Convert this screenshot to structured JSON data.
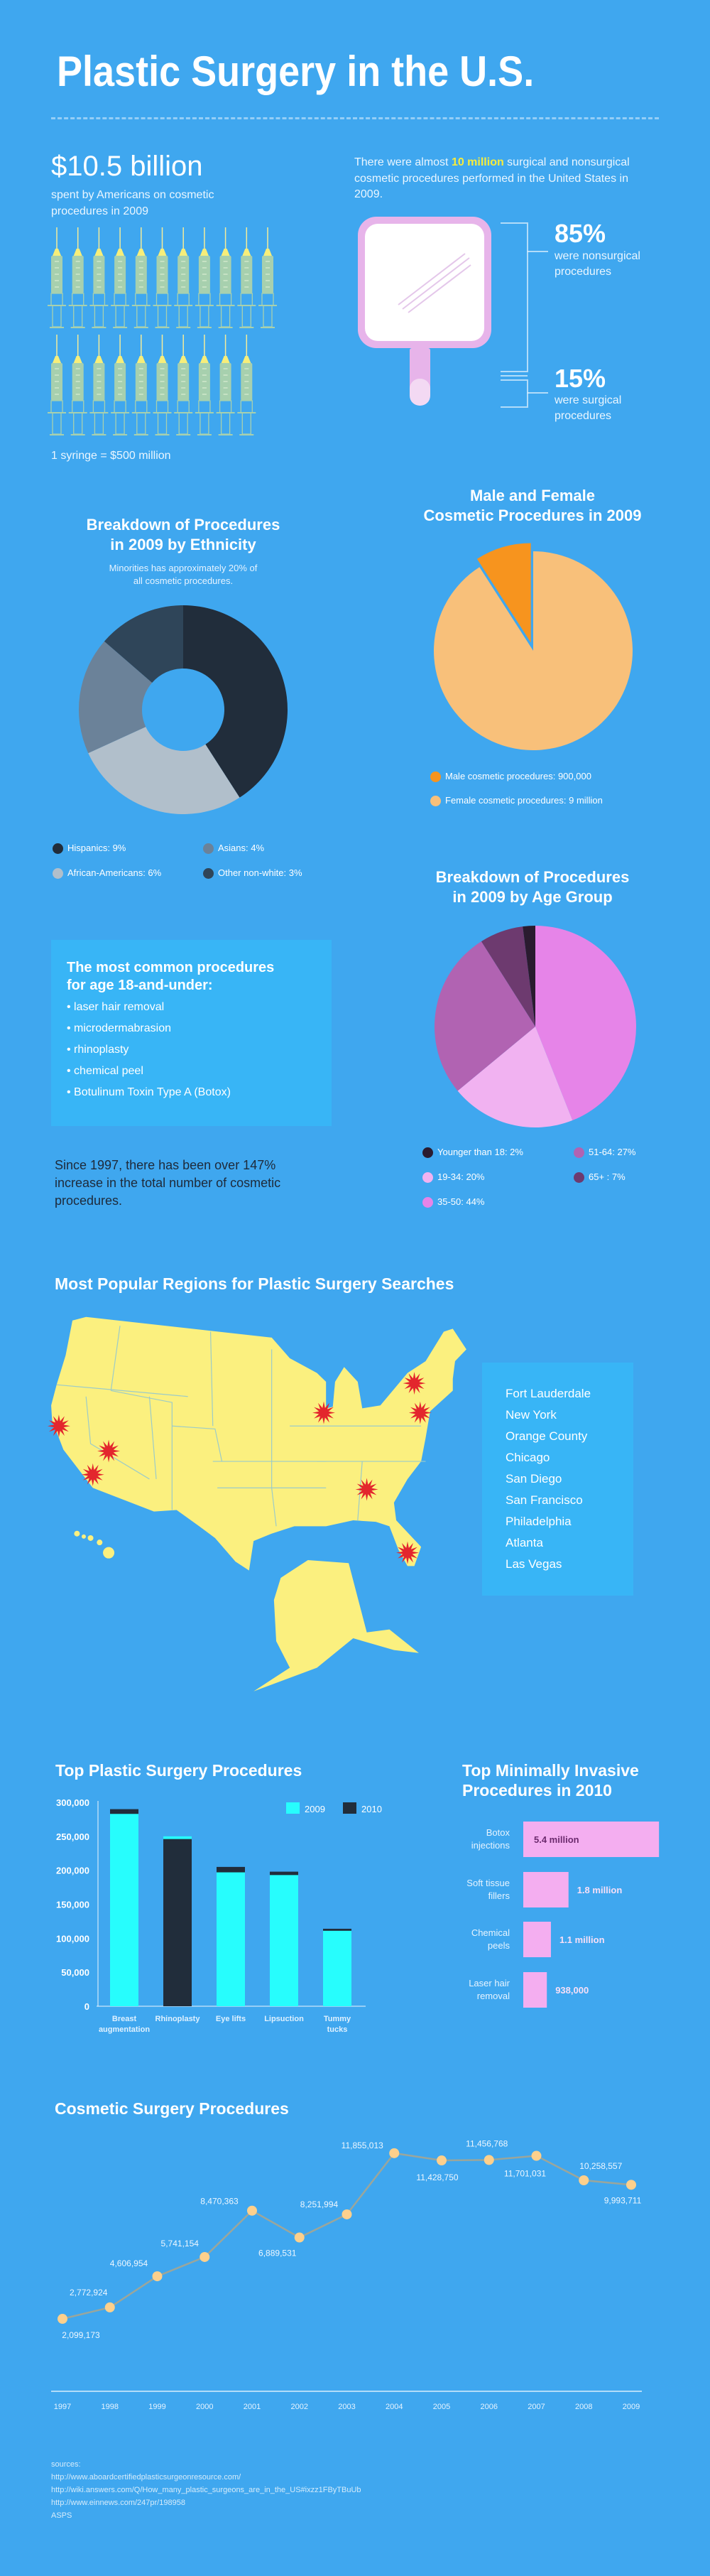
{
  "header": {
    "title": "Plastic Surgery in the U.S."
  },
  "spending": {
    "amount": "$10.5 billion",
    "desc_line1": "spent by Americans on cosmetic",
    "desc_line2": "procedures in 2009",
    "syringe_count": 21,
    "syringe_note": "1 syringe = $500 million"
  },
  "procedures_total": {
    "text_before": "There were almost ",
    "highlight": "10 million",
    "text_after": " surgical and nonsurgical cosmetic procedures performed in the United States in 2009.",
    "nonsurgical_pct": "85%",
    "nonsurgical_label_1": "were nonsurgical",
    "nonsurgical_label_2": "procedures",
    "surgical_pct": "15%",
    "surgical_label_1": "were surgical",
    "surgical_label_2": "procedures"
  },
  "ethnicity": {
    "title_1": "Breakdown of Procedures",
    "title_2": "in 2009 by Ethnicity",
    "subtitle_1": "Minorities has approximately 20% of",
    "subtitle_2": "all cosmetic procedures."
  },
  "gender": {
    "title_1": "Male and Female",
    "title_2": "Cosmetic Procedures in 2009"
  },
  "age": {
    "title_1": "Breakdown of Procedures",
    "title_2": "in 2009 by Age Group"
  },
  "under18": {
    "heading_1": "The most common procedures",
    "heading_2": "for age 18-and-under:",
    "items": [
      "laser hair removal",
      "microdermabrasion",
      "rhinoplasty",
      "chemical peel",
      "Botulinum Toxin Type A (Botox)"
    ]
  },
  "increase_note": {
    "line1": "Since 1997, there has been over 147%",
    "line2": "increase in the total number of cosmetic",
    "line3": "procedures."
  },
  "map": {
    "title": "Most Popular Regions for Plastic Surgery Searches",
    "cities": [
      "Fort Lauderdale",
      "New York",
      "Orange County",
      "Chicago",
      "San Diego",
      "San Francisco",
      "Philadelphia",
      "Atlanta",
      "Las Vegas"
    ],
    "land_color": "#fbf07f",
    "marker_color": "#e3262d"
  },
  "sources": {
    "label": "sources:",
    "items": [
      "http://www.aboardcertifiedplasticsurgeonresource.com/",
      "http://wiki.answers.com/Q/How_many_plastic_surgeons_are_in_the_US#ixzz1FByTBuUb",
      "http://www.einnews.com/247pr/198958",
      "ASPS"
    ]
  },
  "chart_data": [
    {
      "type": "pie",
      "variant": "donut",
      "categories": [
        "Hispanics",
        "African-Americans",
        "Asians",
        "Other non-white"
      ],
      "values": [
        9,
        6,
        4,
        3
      ],
      "legend": [
        "Hispanics: 9%",
        "Asians: 4%",
        "African-Americans: 6%",
        "Other non-white: 3%"
      ],
      "colors": [
        "#212d3b",
        "#b1bfcb",
        "#6b8299",
        "#2f4559"
      ]
    },
    {
      "type": "pie",
      "categories": [
        "Male",
        "Female"
      ],
      "values": [
        900000,
        9000000
      ],
      "legend": [
        "Male cosmetic procedures: 900,000",
        "Female cosmetic procedures: 9 million"
      ],
      "colors": [
        "#f7941e",
        "#f8c07a"
      ]
    },
    {
      "type": "pie",
      "categories": [
        "35-50",
        "19-34",
        "51-64",
        "65+",
        "Younger than 18"
      ],
      "values": [
        44,
        20,
        27,
        7,
        2
      ],
      "legend": [
        "Younger than 18: 2%",
        "51-64: 27%",
        "19-34: 20%",
        "65+ : 7%",
        "35-50: 44%"
      ],
      "colors": [
        "#e684e8",
        "#f1b2f1",
        "#b163b2",
        "#6d3a6f",
        "#2a1b2f"
      ]
    },
    {
      "type": "bar",
      "title": "Top Plastic Surgery Procedures",
      "categories": [
        [
          "Breast",
          "augmentation"
        ],
        [
          "Rhinoplasty"
        ],
        [
          "Eye lifts"
        ],
        [
          "Lipsuction"
        ],
        [
          "Tummy",
          "tucks"
        ]
      ],
      "series": [
        {
          "name": "2009",
          "values": [
            283000,
            250000,
            197000,
            193000,
            111000
          ],
          "color": "#27fdfd"
        },
        {
          "name": "2010",
          "values": [
            290000,
            246000,
            205000,
            198000,
            114000
          ],
          "color": "#212d3b"
        }
      ],
      "ylim": [
        0,
        300000
      ],
      "yticks": [
        "0",
        "50,000",
        "100,000",
        "150,000",
        "200,000",
        "250,000",
        "300,000"
      ],
      "legend": "top-right"
    },
    {
      "type": "bar",
      "orientation": "horizontal",
      "title_1": "Top Minimally Invasive",
      "title_2": "Procedures in 2010",
      "categories": [
        [
          "Botox",
          "injections"
        ],
        [
          "Soft tissue",
          "fillers"
        ],
        [
          "Chemical",
          "peels"
        ],
        [
          "Laser hair",
          "removal"
        ]
      ],
      "values": [
        5400000,
        1800000,
        1100000,
        938000
      ],
      "labels": [
        "5.4 million",
        "1.8 million",
        "1.1 million",
        "938,000"
      ],
      "color": "#f4aef0"
    },
    {
      "type": "line",
      "title": "Cosmetic Surgery Procedures",
      "x": [
        "1997",
        "1998",
        "1999",
        "2000",
        "2001",
        "2002",
        "2003",
        "2004",
        "2005",
        "2006",
        "2007",
        "2008",
        "2009"
      ],
      "values": [
        2099173,
        2772924,
        4606954,
        5741154,
        8470363,
        6889531,
        8251994,
        11855013,
        11428750,
        11456768,
        11701031,
        10258557,
        9993711
      ],
      "labels": [
        "2,099,173",
        "2,772,924",
        "4,606,954",
        "5,741,154",
        "8,470,363",
        "6,889,531",
        "8,251,994",
        "11,855,013",
        "11,428,750",
        "11,456,768",
        "11,701,031",
        "10,258,557",
        "9,993,711"
      ],
      "line_color": "#9aa69c",
      "marker_color": "#fdd08c"
    }
  ]
}
